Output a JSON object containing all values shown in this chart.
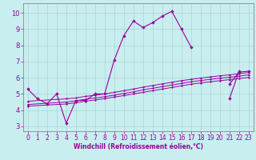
{
  "xlabel": "Windchill (Refroidissement éolien,°C)",
  "bg_color": "#c8eef0",
  "grid_color": "#b0d8dc",
  "line_color": "#990099",
  "spine_color": "#888888",
  "x_ticks": [
    0,
    1,
    2,
    3,
    4,
    5,
    6,
    7,
    8,
    9,
    10,
    11,
    12,
    13,
    14,
    15,
    16,
    17,
    18,
    19,
    20,
    21,
    22,
    23
  ],
  "y_ticks": [
    3,
    4,
    5,
    6,
    7,
    8,
    9,
    10
  ],
  "xlim": [
    -0.5,
    23.5
  ],
  "ylim": [
    2.7,
    10.6
  ],
  "line1": [
    5.3,
    4.7,
    4.4,
    5.0,
    3.2,
    4.6,
    4.6,
    5.0,
    5.0,
    7.1,
    8.6,
    9.5,
    9.1,
    9.4,
    9.8,
    10.1,
    9.0,
    7.9,
    null,
    null,
    null,
    4.7,
    6.4,
    null
  ],
  "line2": [
    null,
    null,
    null,
    null,
    null,
    null,
    null,
    null,
    null,
    null,
    null,
    null,
    null,
    null,
    null,
    null,
    null,
    null,
    null,
    null,
    null,
    5.6,
    6.35,
    6.4
  ],
  "line3_x": [
    0,
    4,
    5,
    6,
    7,
    8,
    9,
    10,
    11,
    12,
    13,
    14,
    15,
    16,
    17,
    18,
    19,
    20,
    21,
    22,
    23
  ],
  "line3_y": [
    4.55,
    4.7,
    4.75,
    4.85,
    4.92,
    5.0,
    5.1,
    5.2,
    5.3,
    5.42,
    5.52,
    5.62,
    5.72,
    5.82,
    5.9,
    5.98,
    6.05,
    6.12,
    6.18,
    6.25,
    6.32
  ],
  "line4_x": [
    0,
    4,
    5,
    6,
    7,
    8,
    9,
    10,
    11,
    12,
    13,
    14,
    15,
    16,
    17,
    18,
    19,
    20,
    21,
    22,
    23
  ],
  "line4_y": [
    4.35,
    4.5,
    4.58,
    4.67,
    4.75,
    4.83,
    4.93,
    5.03,
    5.13,
    5.25,
    5.35,
    5.45,
    5.55,
    5.65,
    5.75,
    5.83,
    5.9,
    5.97,
    6.03,
    6.1,
    6.18
  ],
  "line5_x": [
    0,
    4,
    5,
    6,
    7,
    8,
    9,
    10,
    11,
    12,
    13,
    14,
    15,
    16,
    17,
    18,
    19,
    20,
    21,
    22,
    23
  ],
  "line5_y": [
    4.25,
    4.38,
    4.46,
    4.55,
    4.63,
    4.71,
    4.81,
    4.9,
    5.0,
    5.1,
    5.2,
    5.3,
    5.4,
    5.5,
    5.6,
    5.68,
    5.75,
    5.82,
    5.88,
    5.95,
    6.02
  ],
  "tick_fontsize": 5.5,
  "xlabel_fontsize": 5.5
}
